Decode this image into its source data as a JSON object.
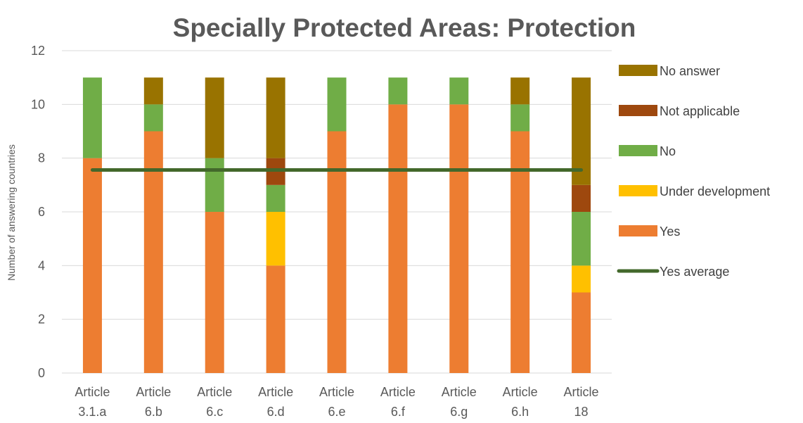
{
  "chart_data": {
    "type": "bar",
    "stacked": true,
    "title": "Specially Protected Areas: Protection",
    "xlabel": "",
    "ylabel": "Number of answering countries",
    "ylim": [
      0,
      12
    ],
    "yticks": [
      "0",
      "2",
      "4",
      "6",
      "8",
      "10",
      "12"
    ],
    "grid": true,
    "legend_position": "right",
    "categories": [
      [
        "Article",
        "3.1.a"
      ],
      [
        "Article",
        "6.b"
      ],
      [
        "Article",
        "6.c"
      ],
      [
        "Article",
        "6.d"
      ],
      [
        "Article",
        "6.e"
      ],
      [
        "Article",
        "6.f"
      ],
      [
        "Article",
        "6.g"
      ],
      [
        "Article",
        "6.h"
      ],
      [
        "Article",
        "18"
      ]
    ],
    "series": [
      {
        "name": "Yes",
        "color": "#ED7D31",
        "values": [
          8,
          9,
          6,
          4,
          9,
          10,
          10,
          9,
          3
        ]
      },
      {
        "name": "Under development",
        "color": "#FFC000",
        "values": [
          0,
          0,
          0,
          2,
          0,
          0,
          0,
          0,
          1
        ]
      },
      {
        "name": "No",
        "color": "#70AD47",
        "values": [
          3,
          1,
          2,
          1,
          2,
          1,
          1,
          1,
          2
        ]
      },
      {
        "name": "Not applicable",
        "color": "#9E480E",
        "values": [
          0,
          0,
          0,
          1,
          0,
          0,
          0,
          0,
          1
        ]
      },
      {
        "name": "No answer",
        "color": "#997300",
        "values": [
          0,
          1,
          3,
          3,
          0,
          0,
          0,
          1,
          4
        ]
      }
    ],
    "line_series": {
      "name": "Yes average",
      "color": "#43682B",
      "value": 7.56
    },
    "legend_order": [
      "No answer",
      "Not applicable",
      "No",
      "Under development",
      "Yes",
      "Yes average"
    ],
    "grid_color": "#D9D9D9"
  }
}
